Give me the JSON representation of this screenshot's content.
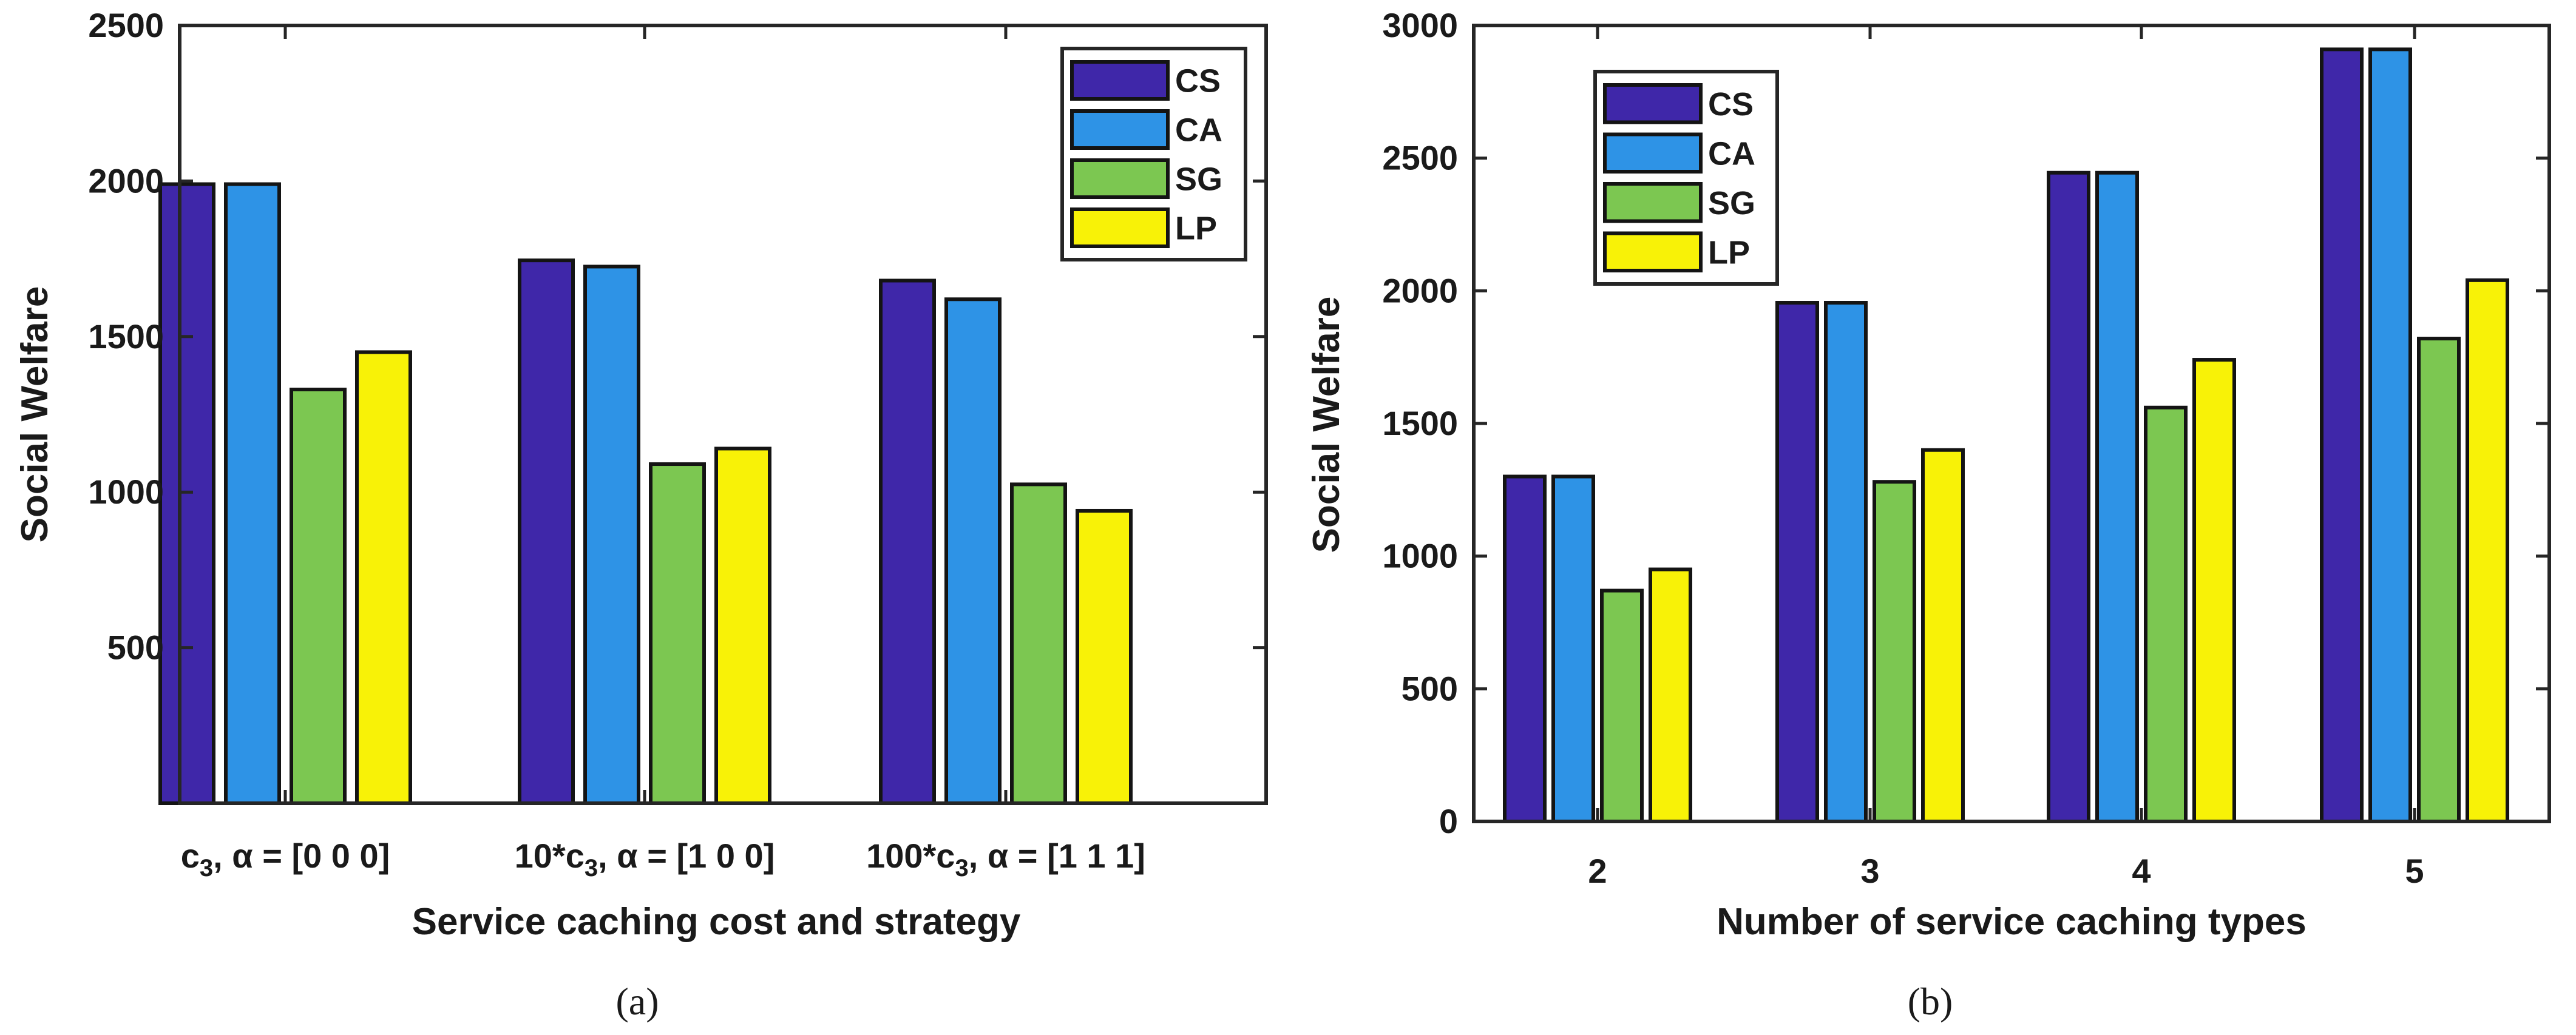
{
  "colors": {
    "CS": "#3f27a9",
    "CA": "#2e93e6",
    "SG": "#7cc751",
    "LP": "#f8f207"
  },
  "chart_data": [
    {
      "type": "bar",
      "panel": "a",
      "caption": "(a)",
      "xlabel": "Service caching cost and strategy",
      "ylabel": "Social Welfare",
      "ylim": [
        0,
        2500
      ],
      "yticks": [
        500,
        1000,
        1500,
        2000,
        2500
      ],
      "legend_position": "top-right",
      "category_labels": [
        {
          "base": "c",
          "sub": "3",
          "rest": ", α = [0 0 0]"
        },
        {
          "base": "10*c",
          "sub": "3",
          "rest": ", α = [1 0 0]"
        },
        {
          "base": "100*c",
          "sub": "3",
          "rest": ", α = [1 1 1]"
        }
      ],
      "categories": [
        "c3, α = [0 0 0]",
        "10*c3, α = [1 0 0]",
        "100*c3, α = [1 1 1]"
      ],
      "series": [
        {
          "name": "CS",
          "values": [
            1990,
            1745,
            1680
          ]
        },
        {
          "name": "CA",
          "values": [
            1990,
            1725,
            1620
          ]
        },
        {
          "name": "SG",
          "values": [
            1330,
            1090,
            1025
          ]
        },
        {
          "name": "LP",
          "values": [
            1450,
            1140,
            940
          ]
        }
      ]
    },
    {
      "type": "bar",
      "panel": "b",
      "caption": "(b)",
      "xlabel": "Number of service caching types",
      "ylabel": "Social Welfare",
      "ylim": [
        0,
        3000
      ],
      "yticks": [
        0,
        500,
        1000,
        1500,
        2000,
        2500,
        3000
      ],
      "legend_position": "top-left",
      "categories": [
        "2",
        "3",
        "4",
        "5"
      ],
      "series": [
        {
          "name": "CS",
          "values": [
            1300,
            1955,
            2445,
            2910
          ]
        },
        {
          "name": "CA",
          "values": [
            1300,
            1955,
            2445,
            2910
          ]
        },
        {
          "name": "SG",
          "values": [
            870,
            1280,
            1560,
            1820
          ]
        },
        {
          "name": "LP",
          "values": [
            950,
            1400,
            1740,
            2040
          ]
        }
      ]
    }
  ]
}
